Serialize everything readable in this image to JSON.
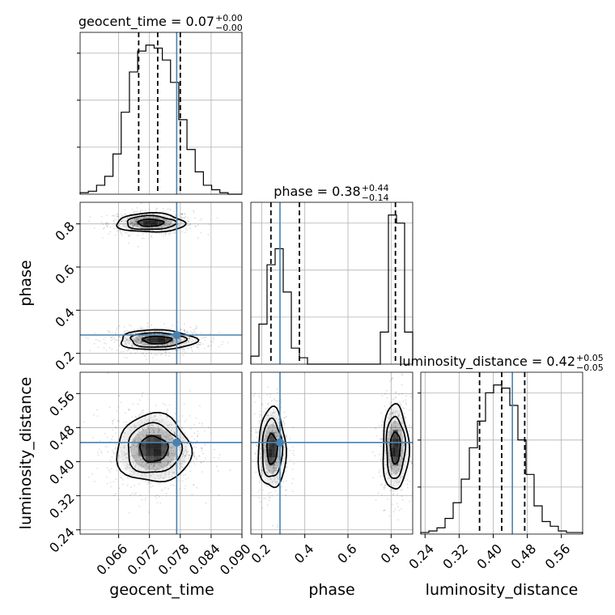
{
  "chart_data": {
    "type": "corner",
    "parameters": [
      "geocent_time",
      "phase",
      "luminosity_distance"
    ],
    "axis_labels": {
      "geocent_time": "geocent_time",
      "phase": "phase",
      "luminosity_distance": "luminosity_distance"
    },
    "ranges": {
      "geocent_time": [
        0.0585,
        0.09
      ],
      "phase": [
        0.15,
        0.9
      ],
      "luminosity_distance": [
        0.23,
        0.61
      ]
    },
    "ticks": {
      "geocent_time": [
        "0.066",
        "0.072",
        "0.078",
        "0.084",
        "0.090"
      ],
      "phase_x": [
        "0.2",
        "0.4",
        "0.6",
        "0.8"
      ],
      "phase_y": [
        "0.2",
        "0.4",
        "0.6",
        "0.8"
      ],
      "luminosity_distance": [
        "0.24",
        "0.32",
        "0.40",
        "0.48",
        "0.56"
      ]
    },
    "truths": {
      "geocent_time": 0.0773,
      "phase": 0.285,
      "luminosity_distance": 0.445
    },
    "titles": [
      {
        "param": "geocent_time",
        "text": "geocent_time = 0.07",
        "plus": "+0.00",
        "minus": "−0.00"
      },
      {
        "param": "phase",
        "text": "phase = 0.38",
        "plus": "+0.44",
        "minus": "−0.14"
      },
      {
        "param": "luminosity_distance",
        "text": "luminosity_distance = 0.42",
        "plus": "+0.05",
        "minus": "−0.05"
      }
    ],
    "quantiles": {
      "geocent_time": [
        0.0699,
        0.0736,
        0.078
      ],
      "phase": [
        0.243,
        0.375,
        0.82
      ],
      "luminosity_distance": [
        0.368,
        0.42,
        0.474
      ]
    },
    "histograms": {
      "geocent_time": {
        "edges": [
          0.0585,
          0.0601,
          0.0617,
          0.0633,
          0.0649,
          0.0665,
          0.0681,
          0.0697,
          0.0713,
          0.0729,
          0.0745,
          0.0761,
          0.0777,
          0.0793,
          0.0809,
          0.0825,
          0.0841,
          0.0857,
          0.0873,
          0.0889,
          0.09
        ],
        "counts": [
          1,
          2,
          6,
          12,
          27,
          55,
          82,
          96,
          100,
          98,
          90,
          75,
          50,
          30,
          15,
          6,
          3,
          1,
          0,
          0
        ]
      },
      "phase": {
        "edges": [
          0.15,
          0.1875,
          0.225,
          0.2625,
          0.3,
          0.3375,
          0.375,
          0.4125,
          0.45,
          0.4875,
          0.525,
          0.5625,
          0.6,
          0.6375,
          0.675,
          0.7125,
          0.75,
          0.7875,
          0.825,
          0.8625,
          0.9
        ],
        "counts": [
          5,
          25,
          62,
          72,
          45,
          10,
          4,
          0,
          0,
          0,
          0,
          0,
          0,
          0,
          0,
          0,
          20,
          93,
          88,
          20
        ]
      },
      "luminosity_distance": {
        "edges": [
          0.23,
          0.249,
          0.268,
          0.287,
          0.306,
          0.325,
          0.344,
          0.363,
          0.382,
          0.401,
          0.42,
          0.439,
          0.458,
          0.477,
          0.496,
          0.515,
          0.534,
          0.553,
          0.572,
          0.591,
          0.61
        ],
        "counts": [
          1,
          2,
          4,
          10,
          20,
          35,
          55,
          72,
          90,
          95,
          93,
          82,
          60,
          38,
          18,
          8,
          5,
          2,
          1,
          1
        ]
      }
    },
    "colors": {
      "truth": "#4682b4",
      "hist": "#000000",
      "grid": "#b0b0b0"
    },
    "grid": true
  }
}
